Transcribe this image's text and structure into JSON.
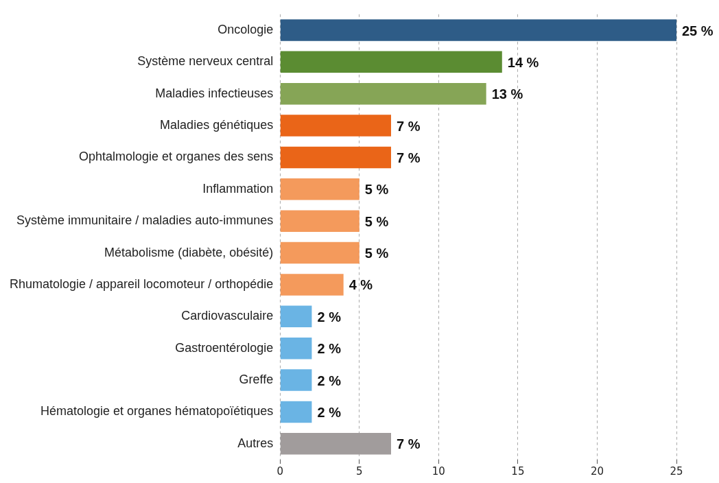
{
  "chart_data": {
    "type": "bar",
    "orientation": "horizontal",
    "categories": [
      "Oncologie",
      "Système nerveux central",
      "Maladies infectieuses",
      "Maladies génétiques",
      "Ophtalmologie et organes des sens",
      "Inflammation",
      "Système immunitaire / maladies auto-immunes",
      "Métabolisme (diabète, obésité)",
      "Rhumatologie / appareil locomoteur / orthopédie",
      "Cardiovasculaire",
      "Gastroentérologie",
      "Greffe",
      "Hématologie et organes hématopoïétiques",
      "Autres"
    ],
    "values": [
      25,
      14,
      13,
      7,
      7,
      5,
      5,
      5,
      4,
      2,
      2,
      2,
      2,
      7
    ],
    "colors": [
      "#2e5c87",
      "#5b8c32",
      "#86a556",
      "#ea6518",
      "#ea6518",
      "#f49a5c",
      "#f49a5c",
      "#f49a5c",
      "#f49a5c",
      "#6ab4e4",
      "#6ab4e4",
      "#6ab4e4",
      "#6ab4e4",
      "#a19c9c"
    ],
    "value_labels": [
      "25 %",
      "14 %",
      "13 %",
      "7 %",
      "7 %",
      "5 %",
      "5 %",
      "5 %",
      "4 %",
      "2 %",
      "2 %",
      "2 %",
      "2 %",
      "7 %"
    ],
    "xlim": [
      0,
      25
    ],
    "xticks": [
      0,
      5,
      10,
      15,
      20,
      25
    ],
    "grid": "x",
    "legend": false
  }
}
